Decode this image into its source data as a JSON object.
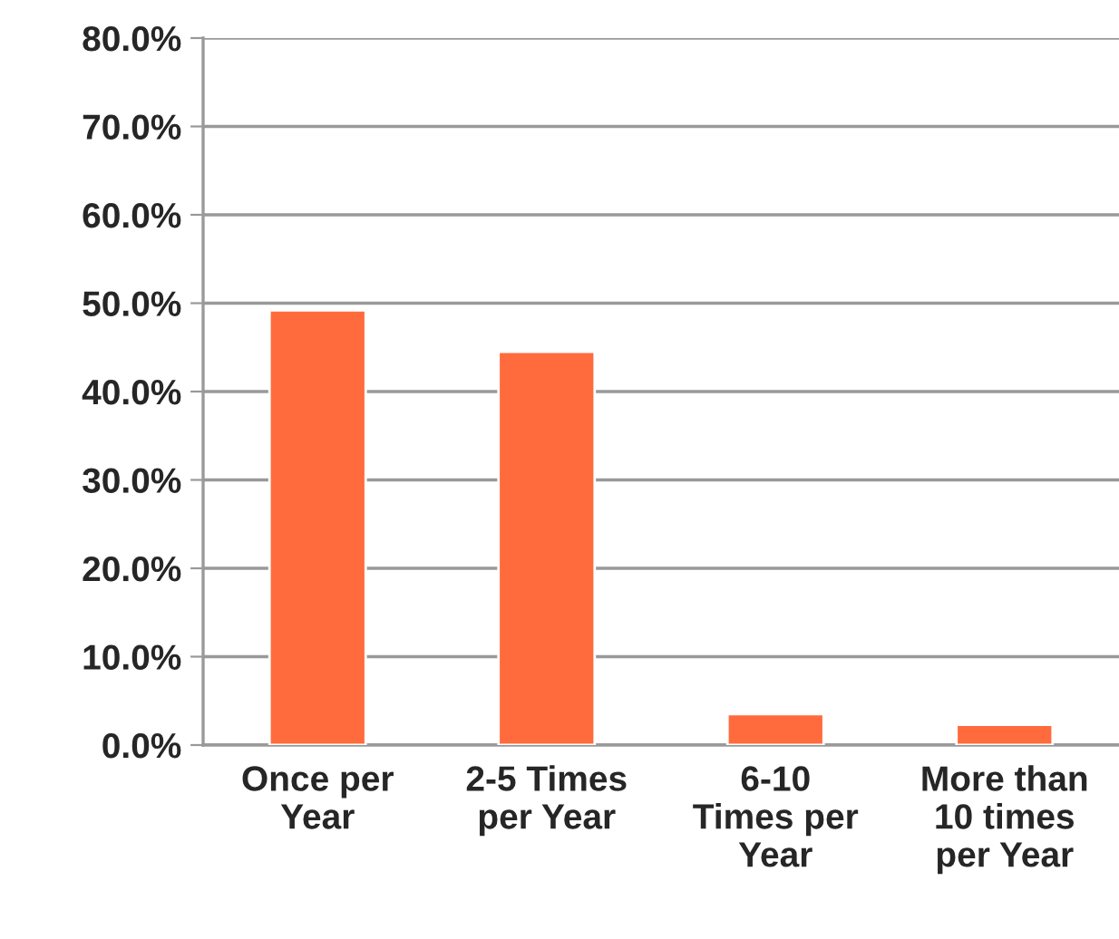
{
  "chart_data": {
    "type": "bar",
    "categories": [
      "Once per\nYear",
      "2-5 Times\nper Year",
      "6-10\nTimes per\nYear",
      "More than\n10 times\nper Year"
    ],
    "values": [
      49.2,
      44.5,
      3.5,
      2.3
    ],
    "color": "#ff6b3d",
    "ylim": [
      0,
      80
    ],
    "yticks": [
      {
        "value": 0,
        "label": "0.0%"
      },
      {
        "value": 10,
        "label": "10.0%"
      },
      {
        "value": 20,
        "label": "20.0%"
      },
      {
        "value": 30,
        "label": "30.0%"
      },
      {
        "value": 40,
        "label": "40.0%"
      },
      {
        "value": 50,
        "label": "50.0%"
      },
      {
        "value": 60,
        "label": "60.0%"
      },
      {
        "value": 70,
        "label": "70.0%"
      },
      {
        "value": 80,
        "label": "80.0%"
      }
    ],
    "grid": "y"
  }
}
